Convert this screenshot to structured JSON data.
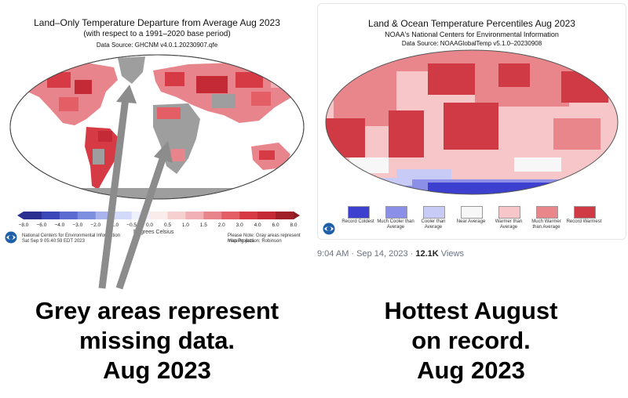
{
  "left_map": {
    "title": "Land–Only Temperature Departure from Average Aug 2023",
    "subtitle": "(with respect to a 1991–2020 base period)",
    "source": "Data Source: GHCNM v4.0.1.20230907.qfe",
    "colorbar_ticks": [
      "−8.0",
      "−6.0",
      "−4.0",
      "−3.0",
      "−2.0",
      "−1.0",
      "−0.5",
      "0.0",
      "0.5",
      "1.0",
      "1.5",
      "2.0",
      "3.0",
      "4.0",
      "6.0",
      "8.0"
    ],
    "colorbar_unit": "Degrees Celsius",
    "footer_org": "National Centers for Environmental Information",
    "footer_date": "Sat Sep  9 05:40:59 EDT 2023",
    "footer_note": "Please Note: Gray areas represent missing data",
    "footer_projection": "Map Projection: Robinson",
    "colors": {
      "missing": "#9e9e9e",
      "warm": "#d63a44",
      "cool": "#5a6ad0"
    }
  },
  "right_map": {
    "title": "Land & Ocean Temperature Percentiles Aug 2023",
    "subtitle": "NOAA's National Centers for Environmental Information",
    "source": "Data Source: NOAAGlobalTemp v5.1.0–20230908",
    "legend": [
      {
        "label": "Record Coldest",
        "color": "#3d3fcf"
      },
      {
        "label": "Much Cooler than Average",
        "color": "#8c8fe8"
      },
      {
        "label": "Cooler than Average",
        "color": "#c8cbf6"
      },
      {
        "label": "Near Average",
        "color": "#f7f7f7"
      },
      {
        "label": "Warmer than Average",
        "color": "#f6c6c8"
      },
      {
        "label": "Much Warmer than Average",
        "color": "#e8868c"
      },
      {
        "label": "Record Warmest",
        "color": "#cf3a44"
      }
    ]
  },
  "tweet_meta": {
    "time": "9:04 AM · Sep 14, 2023 ·",
    "views": "12.1K",
    "views_label": "Views"
  },
  "captions": {
    "left": [
      "Grey areas represent",
      "missing data.",
      "Aug 2023"
    ],
    "right": [
      "Hottest August",
      "on record.",
      "Aug 2023"
    ]
  }
}
